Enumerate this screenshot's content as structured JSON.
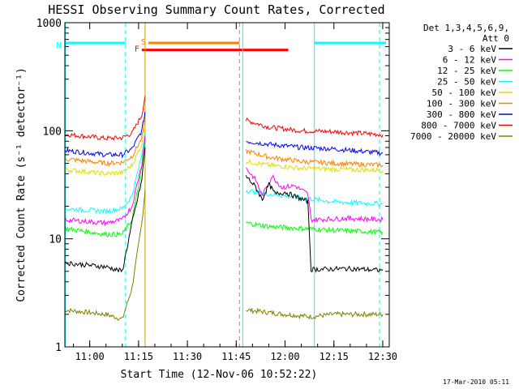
{
  "chart_data": {
    "type": "line",
    "title": "HESSI Observing Summary Count Rates, Corrected",
    "xlabel": "Start Time (12-Nov-06 10:52:22)",
    "ylabel": "Corrected Count Rate (s⁻¹ detector⁻¹)",
    "footer": "17-Mar-2010 05:11",
    "yscale": "log",
    "ylim": [
      1,
      1000
    ],
    "xlim": [
      "10:52:22",
      "12:32:00"
    ],
    "x_ticks": [
      "11:00",
      "11:15",
      "11:30",
      "11:45",
      "12:00",
      "12:15",
      "12:30"
    ],
    "y_ticks": [
      "1",
      "10",
      "100",
      "1000"
    ],
    "legend": {
      "header": [
        "Det 1,3,4,5,6,9,",
        "Att 0"
      ],
      "placement": "right"
    },
    "series": [
      {
        "name": "3 - 6 keV",
        "color": "#000000",
        "seg1": [
          [
            "10:52",
            "6"
          ],
          [
            "11:05",
            "5.5"
          ],
          [
            "11:10",
            "5"
          ],
          [
            "11:13",
            "14"
          ],
          [
            "11:16",
            "35"
          ],
          [
            "11:17",
            "70"
          ]
        ],
        "seg2": [
          [
            "11:48",
            "38"
          ],
          [
            "11:51",
            "30"
          ],
          [
            "11:53",
            "23"
          ],
          [
            "11:55",
            "32"
          ],
          [
            "11:57",
            "26"
          ],
          [
            "12:00",
            "27"
          ],
          [
            "12:04",
            "24"
          ],
          [
            "12:07",
            "22"
          ],
          [
            "12:08",
            "5.2"
          ],
          [
            "12:20",
            "5.3"
          ],
          [
            "12:30",
            "5.1"
          ]
        ]
      },
      {
        "name": "6 - 12 keV",
        "color": "#ff00ff",
        "seg1": [
          [
            "10:52",
            "15"
          ],
          [
            "11:05",
            "14"
          ],
          [
            "11:10",
            "15"
          ],
          [
            "11:13",
            "20"
          ],
          [
            "11:16",
            "50"
          ],
          [
            "11:17",
            "90"
          ]
        ],
        "seg2": [
          [
            "11:48",
            "45"
          ],
          [
            "11:51",
            "35"
          ],
          [
            "11:53",
            "25"
          ],
          [
            "11:56",
            "38"
          ],
          [
            "11:59",
            "30"
          ],
          [
            "12:03",
            "31"
          ],
          [
            "12:07",
            "26"
          ],
          [
            "12:08",
            "15"
          ],
          [
            "12:20",
            "15.5"
          ],
          [
            "12:30",
            "15"
          ]
        ]
      },
      {
        "name": "12 - 25 keV",
        "color": "#00ff00",
        "seg1": [
          [
            "10:52",
            "12.5"
          ],
          [
            "11:05",
            "11"
          ],
          [
            "11:10",
            "11"
          ],
          [
            "11:13",
            "15"
          ],
          [
            "11:16",
            "45"
          ],
          [
            "11:17",
            "80"
          ]
        ],
        "seg2": [
          [
            "11:48",
            "14"
          ],
          [
            "11:55",
            "13"
          ],
          [
            "12:05",
            "12.5"
          ],
          [
            "12:15",
            "12"
          ],
          [
            "12:30",
            "11.5"
          ]
        ]
      },
      {
        "name": "25 - 50 keV",
        "color": "#00ffff",
        "seg1": [
          [
            "10:52",
            "19"
          ],
          [
            "11:05",
            "18"
          ],
          [
            "11:10",
            "19"
          ],
          [
            "11:13",
            "25"
          ],
          [
            "11:16",
            "60"
          ],
          [
            "11:17",
            "95"
          ]
        ],
        "seg2": [
          [
            "11:48",
            "28"
          ],
          [
            "11:55",
            "26"
          ],
          [
            "12:05",
            "24"
          ],
          [
            "12:15",
            "22"
          ],
          [
            "12:30",
            "21"
          ]
        ]
      },
      {
        "name": "50 - 100 keV",
        "color": "#e0e000",
        "seg1": [
          [
            "10:52",
            "44"
          ],
          [
            "11:05",
            "40"
          ],
          [
            "11:10",
            "41"
          ],
          [
            "11:13",
            "48"
          ],
          [
            "11:16",
            "75"
          ],
          [
            "11:17",
            "110"
          ]
        ],
        "seg2": [
          [
            "11:48",
            "52"
          ],
          [
            "11:55",
            "48"
          ],
          [
            "12:05",
            "45"
          ],
          [
            "12:15",
            "44"
          ],
          [
            "12:30",
            "43"
          ]
        ]
      },
      {
        "name": "100 - 300 keV",
        "color": "#ff8000",
        "seg1": [
          [
            "10:52",
            "55"
          ],
          [
            "11:05",
            "50"
          ],
          [
            "11:10",
            "51"
          ],
          [
            "11:13",
            "58"
          ],
          [
            "11:16",
            "85"
          ],
          [
            "11:17",
            "130"
          ]
        ],
        "seg2": [
          [
            "11:48",
            "65"
          ],
          [
            "11:55",
            "57"
          ],
          [
            "12:05",
            "52"
          ],
          [
            "12:15",
            "50"
          ],
          [
            "12:30",
            "48"
          ]
        ]
      },
      {
        "name": "300 - 800 keV",
        "color": "#0000ff",
        "seg1": [
          [
            "10:52",
            "66"
          ],
          [
            "11:05",
            "60"
          ],
          [
            "11:10",
            "60"
          ],
          [
            "11:13",
            "68"
          ],
          [
            "11:16",
            "100"
          ],
          [
            "11:17",
            "150"
          ]
        ],
        "seg2": [
          [
            "11:48",
            "80"
          ],
          [
            "11:55",
            "75"
          ],
          [
            "12:05",
            "70"
          ],
          [
            "12:15",
            "68"
          ],
          [
            "12:30",
            "62"
          ]
        ]
      },
      {
        "name": "800 - 7000 keV",
        "color": "#ff0000",
        "seg1": [
          [
            "10:52",
            "93"
          ],
          [
            "11:05",
            "85"
          ],
          [
            "11:10",
            "86"
          ],
          [
            "11:13",
            "95"
          ],
          [
            "11:16",
            "140"
          ],
          [
            "11:17",
            "210"
          ]
        ],
        "seg2": [
          [
            "11:48",
            "125"
          ],
          [
            "11:55",
            "108"
          ],
          [
            "12:05",
            "100"
          ],
          [
            "12:15",
            "98"
          ],
          [
            "12:30",
            "92"
          ]
        ]
      },
      {
        "name": "7000 - 20000 keV",
        "color": "#808000",
        "seg1": [
          [
            "10:52",
            "2.2"
          ],
          [
            "11:05",
            "2.0"
          ],
          [
            "11:10",
            "1.8"
          ],
          [
            "11:13",
            "3.5"
          ],
          [
            "11:16",
            "14"
          ],
          [
            "11:17",
            "28"
          ]
        ],
        "seg2": [
          [
            "11:48",
            "2.2"
          ],
          [
            "12:00",
            "2.0"
          ],
          [
            "12:08",
            "1.9"
          ],
          [
            "12:15",
            "2.0"
          ],
          [
            "12:30",
            "2.0"
          ]
        ]
      }
    ],
    "bands": [
      {
        "label": "S",
        "color": "#ff8000",
        "start": "11:18",
        "end": "11:46",
        "y": "650"
      },
      {
        "label": "F",
        "color": "#ff0000",
        "start": "11:16",
        "end": "12:01",
        "y": "560"
      },
      {
        "label": "N",
        "color": "#00ffff",
        "start": "10:52",
        "end": "11:11",
        "y": "650"
      },
      {
        "label": "",
        "color": "#00ffff",
        "start": "12:09",
        "end": "12:31",
        "y": "650"
      }
    ],
    "vlines": [
      {
        "t": "10:52:30",
        "color": "#00ffff",
        "style": "solid"
      },
      {
        "t": "11:11",
        "color": "#00ffff",
        "style": "dashed"
      },
      {
        "t": "11:17",
        "color": "#c8a000",
        "style": "solid"
      },
      {
        "t": "11:46",
        "color": "#ff8000",
        "style": "dashed"
      },
      {
        "t": "11:47",
        "color": "#00ffff",
        "style": "solid"
      },
      {
        "t": "12:09",
        "color": "#00ffff",
        "style": "solid"
      },
      {
        "t": "12:29",
        "color": "#00ffff",
        "style": "dashed"
      }
    ]
  }
}
